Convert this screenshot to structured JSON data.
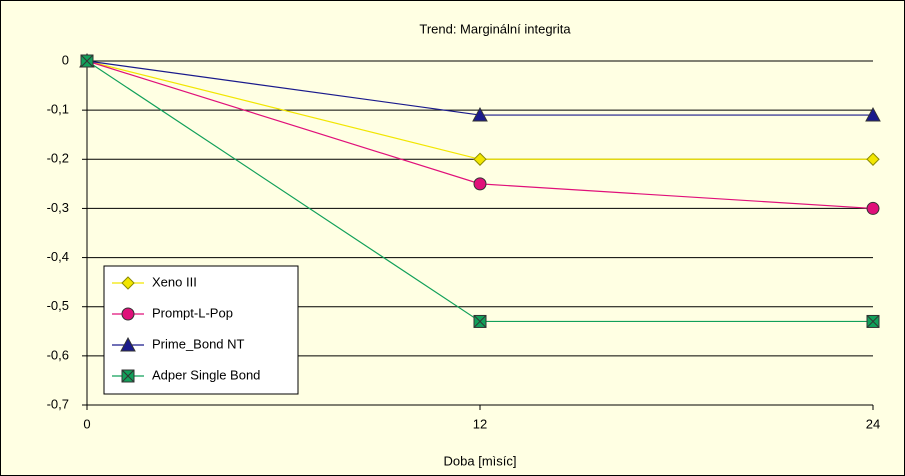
{
  "chart_data": {
    "type": "line",
    "title": "Trend: Marginální integrita",
    "x_label": "Doba [mìsíc]",
    "x": [
      0,
      12,
      24
    ],
    "series": [
      {
        "name": "Xeno III",
        "color": "#f2e600",
        "marker": "diamond",
        "values": [
          0,
          -0.2,
          -0.2
        ]
      },
      {
        "name": "Prompt-L-Pop",
        "color": "#e0107a",
        "marker": "circle",
        "values": [
          0,
          -0.25,
          -0.3
        ]
      },
      {
        "name": "Prime_Bond NT",
        "color": "#1a1a8c",
        "marker": "triangle",
        "values": [
          0,
          -0.11,
          -0.11
        ]
      },
      {
        "name": "Adper Single Bond",
        "color": "#11a05a",
        "marker": "square-x",
        "values": [
          0,
          -0.53,
          -0.53
        ]
      }
    ],
    "xlim": [
      0,
      24
    ],
    "xticks": [
      0,
      12,
      24
    ],
    "ylim": [
      -0.7,
      0
    ],
    "yticks": [
      0,
      {
        "value": -0.1,
        "label": "-0,1"
      },
      {
        "value": -0.2,
        "label": "-0,2"
      },
      {
        "value": -0.3,
        "label": "-0,3"
      },
      {
        "value": -0.4,
        "label": "-0,4"
      },
      {
        "value": -0.5,
        "label": "-0,5"
      },
      {
        "value": -0.6,
        "label": "-0,6"
      },
      {
        "value": -0.7,
        "label": "-0,7"
      }
    ],
    "grid": true,
    "legend": "lower left"
  }
}
